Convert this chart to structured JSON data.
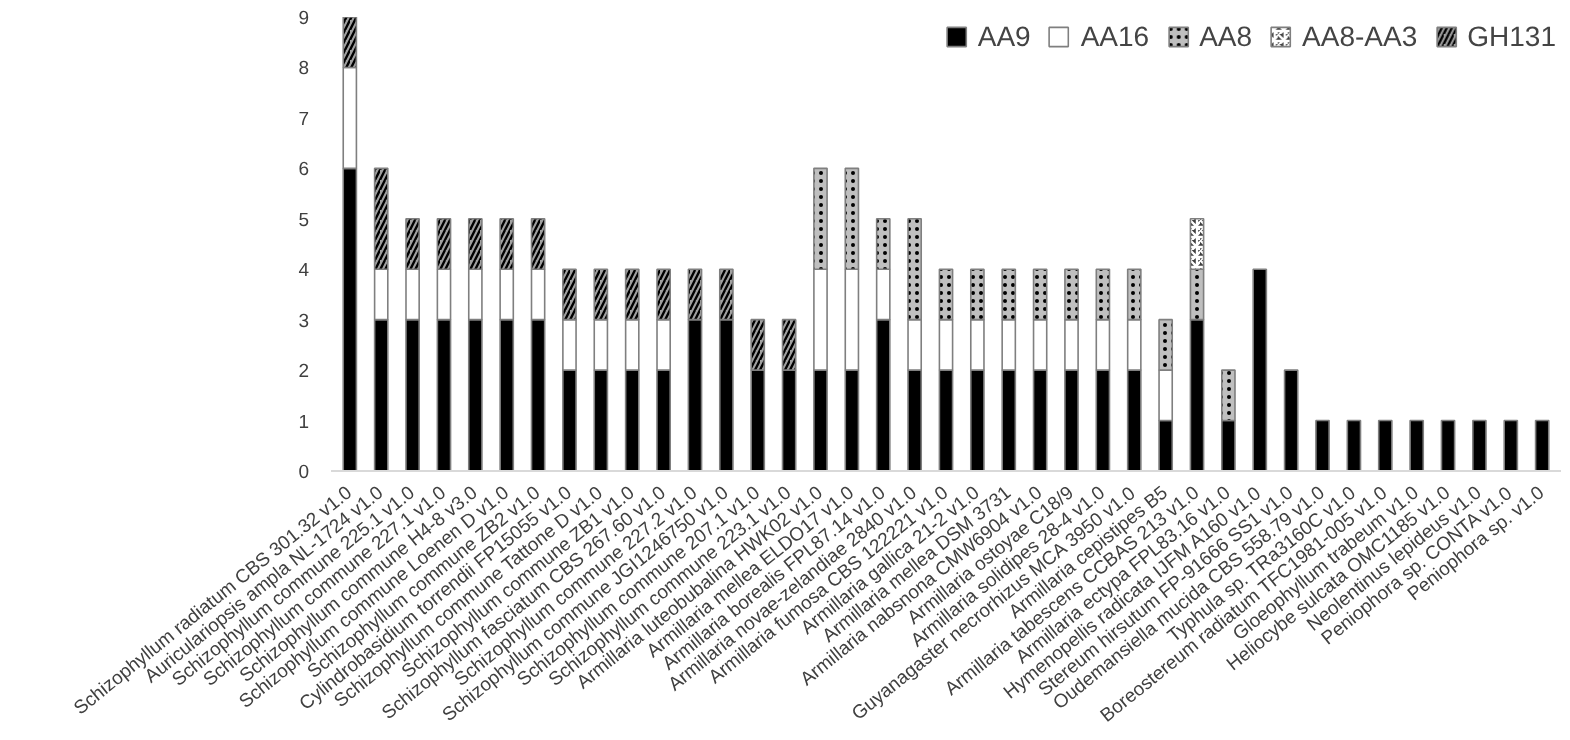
{
  "chart_data": {
    "type": "bar",
    "stacked": true,
    "ylim": [
      0,
      9
    ],
    "yticks": [
      0,
      1,
      2,
      3,
      4,
      5,
      6,
      7,
      8,
      9
    ],
    "grid": false,
    "legend": "top right",
    "categories": [
      "Schizophyllum radiatum CBS 301.32 v1.0",
      "Auriculariopsis ampla NL-1724 v1.0",
      "Schizophyllum commune 225.1 v1.0",
      "Schizophyllum commune 227.1 v1.0",
      "Schizophyllum commune H4-8 v3.0",
      "Schizophyllum commune Loenen D v1.0",
      "Schizophyllum commune ZB2 v1.0",
      "Cylindrobasidium torrendii FP15055 v1.0",
      "Schizophyllum commune Tattone D v1.0",
      "Schizophyllum commune ZB1 v1.0",
      "Schizophyllum fasciatum CBS 267.60 v1.0",
      "Schizophyllum commune 227.2 v1.0",
      "Schizophyllum commune JGI1246750 v1.0",
      "Schizophyllum commune 207.1 v1.0",
      "Schizophyllum commune 223.1 v1.0",
      "Armillaria luteobubalina HWK02 v1.0",
      "Armillaria mellea ELDO17 v1.0",
      "Armillaria borealis FPL87.14 v1.0",
      "Armillaria novae-zelandiae 2840 v1.0",
      "Armillaria fumosa CBS 122221 v1.0",
      "Armillaria gallica 21-2 v1.0",
      "Armillaria mellea DSM 3731",
      "Armillaria nabsnona CMW6904 v1.0",
      "Armillaria ostoyae C18/9",
      "Armillaria solidipes 28-4 v1.0",
      "Guyanagaster necrorhizus MCA 3950 v1.0",
      "Armillaria cepistipes B5",
      "Armillaria tabescens CCBAS 213 v1.0",
      "Armillaria ectypa FPL83.16 v1.0",
      "Hymenopellis radicata IJFM A160 v1.0",
      "Stereum hirsutum FP-91666 SS1 v1.0",
      "Oudemansiella mucida CBS 558.79 v1.0",
      "Typhula sp. TRa3160C v1.0",
      "Boreostereum radiatum TFC1981-005 v1.0",
      "Gloeophyllum trabeum v1.0",
      "Heliocybe sulcata OMC1185 v1.0",
      "Neolentinus lepideus v1.0",
      "Peniophora sp. CONTA v1.0",
      "Peniophora sp. v1.0"
    ],
    "series": [
      {
        "name": "AA9",
        "color": "#000000",
        "values": [
          6,
          3,
          3,
          3,
          3,
          3,
          3,
          2,
          2,
          2,
          2,
          3,
          3,
          2,
          2,
          2,
          2,
          3,
          2,
          2,
          2,
          2,
          2,
          2,
          2,
          2,
          1,
          3,
          1,
          4,
          2,
          1,
          1,
          1,
          1,
          1,
          1,
          1,
          1
        ]
      },
      {
        "name": "AA16",
        "color": "#ffffff",
        "values": [
          2,
          1,
          1,
          1,
          1,
          1,
          1,
          1,
          1,
          1,
          1,
          0,
          0,
          0,
          0,
          2,
          2,
          1,
          1,
          1,
          1,
          1,
          1,
          1,
          1,
          1,
          1,
          0,
          0,
          0,
          0,
          0,
          0,
          0,
          0,
          0,
          0,
          0,
          0
        ]
      },
      {
        "name": "AA8",
        "color": "#bfbfbf",
        "values": [
          0,
          0,
          0,
          0,
          0,
          0,
          0,
          0,
          0,
          0,
          0,
          0,
          0,
          0,
          0,
          2,
          2,
          1,
          2,
          1,
          1,
          1,
          1,
          1,
          1,
          1,
          1,
          1,
          1,
          0,
          0,
          0,
          0,
          0,
          0,
          0,
          0,
          0,
          0
        ]
      },
      {
        "name": "AA8-AA3",
        "color": "#404040",
        "values": [
          0,
          0,
          0,
          0,
          0,
          0,
          0,
          0,
          0,
          0,
          0,
          0,
          0,
          0,
          0,
          0,
          0,
          0,
          0,
          0,
          0,
          0,
          0,
          0,
          0,
          0,
          0,
          1,
          0,
          0,
          0,
          0,
          0,
          0,
          0,
          0,
          0,
          0,
          0
        ]
      },
      {
        "name": "GH131",
        "color": "#a0a0a0",
        "values": [
          1,
          2,
          1,
          1,
          1,
          1,
          1,
          1,
          1,
          1,
          1,
          1,
          1,
          1,
          1,
          0,
          0,
          0,
          0,
          0,
          0,
          0,
          0,
          0,
          0,
          0,
          0,
          0,
          0,
          0,
          0,
          0,
          0,
          0,
          0,
          0,
          0,
          0,
          0
        ]
      }
    ]
  }
}
